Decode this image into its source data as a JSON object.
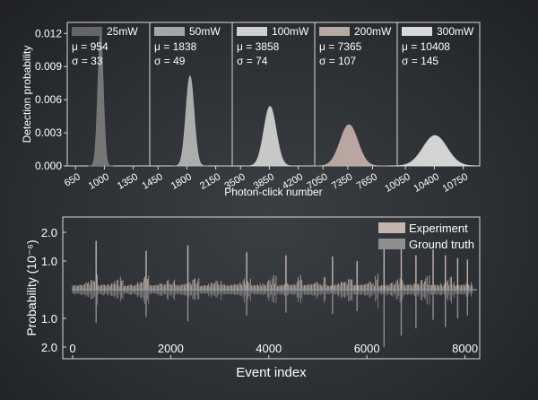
{
  "chart_data": [
    {
      "type": "area",
      "ylabel": "Detection probability",
      "xlabel": "Photon-click number",
      "ylim": [
        0,
        0.013
      ],
      "yticks": [
        "0.000",
        "0.003",
        "0.006",
        "0.009",
        "0.012"
      ],
      "panels": [
        {
          "name": "25mW",
          "mu_label": "μ = 954",
          "sigma_label": "σ = 33",
          "mu": 954,
          "sigma": 33,
          "xlim": [
            550,
            1550
          ],
          "xticks": [
            650,
            1000,
            1350
          ],
          "swatch": "#666666",
          "fill": "#7a7a7a"
        },
        {
          "name": "50mW",
          "mu_label": "μ = 1838",
          "sigma_label": "σ = 49",
          "mu": 1838,
          "sigma": 49,
          "xlim": [
            1350,
            2350
          ],
          "xticks": [
            1450,
            1800,
            2150
          ],
          "swatch": "#a6a6a6",
          "fill": "#b4b4b4"
        },
        {
          "name": "100mW",
          "mu_label": "μ = 3858",
          "sigma_label": "σ = 74",
          "mu": 3858,
          "sigma": 74,
          "xlim": [
            3400,
            4400
          ],
          "xticks": [
            3500,
            3850,
            4200
          ],
          "swatch": "#cfcfcf",
          "fill": "#d0d0d0"
        },
        {
          "name": "200mW",
          "mu_label": "μ = 7365",
          "sigma_label": "σ = 107",
          "mu": 7365,
          "sigma": 107,
          "xlim": [
            6950,
            7950
          ],
          "xticks": [
            7050,
            7350,
            7650
          ],
          "swatch": "#b9a9a4",
          "fill": "#c2aca6"
        },
        {
          "name": "300mW",
          "mu_label": "μ = 10408",
          "sigma_label": "σ = 145",
          "mu": 10408,
          "sigma": 145,
          "xlim": [
            9950,
            10950
          ],
          "xticks": [
            10050,
            10400,
            10750
          ],
          "swatch": "#d8d8d8",
          "fill": "#dcdcdc"
        }
      ]
    },
    {
      "type": "bar",
      "xlabel": "Event index",
      "ylabel": "Probability (10⁻⁶)",
      "xlim": [
        -200,
        8300
      ],
      "xticks": [
        0,
        2000,
        4000,
        6000,
        8000
      ],
      "ylim": [
        -2.4,
        2.4
      ],
      "ytick_labels_top": [
        "2.0",
        "1.0"
      ],
      "ytick_labels_bottom": [
        "1.0",
        "2.0"
      ],
      "series": [
        {
          "name": "Experiment",
          "color": "#c5b4ae",
          "direction": "up"
        },
        {
          "name": "Ground truth",
          "color": "#8e8e8e",
          "direction": "down"
        }
      ],
      "peaks": [
        {
          "x": 480,
          "experiment": 1.7,
          "ground_truth": 1.15
        },
        {
          "x": 1500,
          "experiment": 1.35,
          "ground_truth": 0.95
        },
        {
          "x": 2350,
          "experiment": 1.55,
          "ground_truth": 1.1
        },
        {
          "x": 3550,
          "experiment": 1.3,
          "ground_truth": 0.9
        },
        {
          "x": 4350,
          "experiment": 1.2,
          "ground_truth": 0.8
        },
        {
          "x": 5300,
          "experiment": 1.15,
          "ground_truth": 0.85
        },
        {
          "x": 5800,
          "experiment": 1.0,
          "ground_truth": 0.75
        },
        {
          "x": 6350,
          "experiment": 1.5,
          "ground_truth": 2.0
        },
        {
          "x": 6700,
          "experiment": 1.6,
          "ground_truth": 1.6
        },
        {
          "x": 7000,
          "experiment": 1.2,
          "ground_truth": 1.35
        },
        {
          "x": 7350,
          "experiment": 1.4,
          "ground_truth": 1.05
        },
        {
          "x": 7600,
          "experiment": 1.2,
          "ground_truth": 1.3
        },
        {
          "x": 7850,
          "experiment": 1.1,
          "ground_truth": 1.0
        },
        {
          "x": 8050,
          "experiment": 1.05,
          "ground_truth": 0.9
        }
      ]
    }
  ]
}
